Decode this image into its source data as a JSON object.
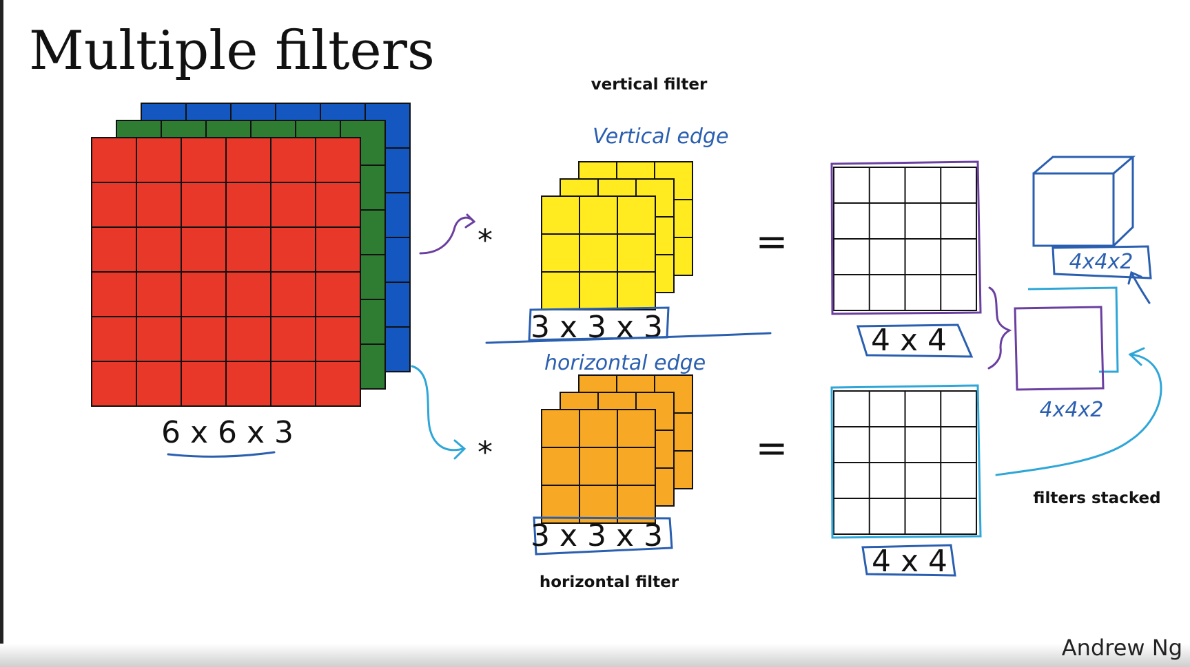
{
  "slide": {
    "title": "Multiple filters",
    "author": "Andrew Ng"
  },
  "input": {
    "label": "6 x 6 x 3",
    "rows": 6,
    "cols": 6,
    "channels": 3,
    "channel_colors": [
      "#e8382a",
      "#2e7d32",
      "#1457c0"
    ]
  },
  "filters": [
    {
      "label": "3 x 3 x 3",
      "rows": 3,
      "cols": 3,
      "channels": 3,
      "color": "#ffeb1f",
      "caption": "vertical filter",
      "handwritten": "Vertical edge"
    },
    {
      "label": "3 x 3 x 3",
      "rows": 3,
      "cols": 3,
      "channels": 3,
      "color": "#f7a825",
      "caption": "horizontal filter",
      "handwritten": "horizontal edge"
    }
  ],
  "operators": {
    "convolve": "*",
    "equals": "="
  },
  "outputs": [
    {
      "label": "4 x 4",
      "rows": 4,
      "cols": 4,
      "outline_color": "#6a3fa0"
    },
    {
      "label": "4 x 4",
      "rows": 4,
      "cols": 4,
      "outline_color": "#2ea6d8"
    }
  ],
  "stacked": {
    "label_top": "4x4x2",
    "label_mid": "4x4x2",
    "caption": "filters stacked"
  },
  "ink": {
    "purple": "#6a3fa0",
    "blue": "#2a5fb0",
    "cyan": "#2ea6d8"
  }
}
